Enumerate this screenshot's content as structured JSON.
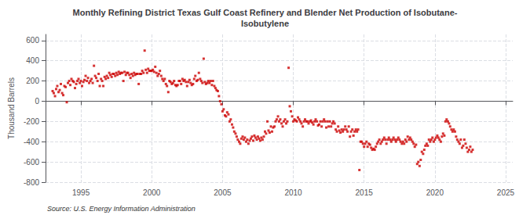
{
  "chart_data": {
    "type": "scatter",
    "title": "Monthly Refining District Texas Gulf Coast Refinery and Blender Net Production of Isobutane-\nIsobutylene",
    "ylabel": "Thousand Barrels",
    "annotations": [
      "Source: U.S. Energy Information Administration"
    ],
    "color": "#cc0000",
    "marker": "square",
    "grid": true,
    "xlim": [
      1992.5,
      2025.5
    ],
    "ylim": [
      -800,
      660
    ],
    "xticks": [
      1995,
      2000,
      2005,
      2010,
      2015,
      2020,
      2025
    ],
    "yticks": [
      -800,
      -600,
      -400,
      -200,
      0,
      200,
      400,
      600
    ],
    "x": [
      1993.0,
      1993.08,
      1993.17,
      1993.25,
      1993.33,
      1993.42,
      1993.5,
      1993.58,
      1993.67,
      1993.75,
      1993.83,
      1993.92,
      1994.0,
      1994.08,
      1994.17,
      1994.25,
      1994.33,
      1994.42,
      1994.5,
      1994.58,
      1994.67,
      1994.75,
      1994.83,
      1994.92,
      1995.0,
      1995.08,
      1995.17,
      1995.25,
      1995.33,
      1995.42,
      1995.5,
      1995.58,
      1995.67,
      1995.75,
      1995.83,
      1995.92,
      1996.0,
      1996.08,
      1996.17,
      1996.25,
      1996.33,
      1996.42,
      1996.5,
      1996.58,
      1996.67,
      1996.75,
      1996.83,
      1996.92,
      1997.0,
      1997.08,
      1997.17,
      1997.25,
      1997.33,
      1997.42,
      1997.5,
      1997.58,
      1997.67,
      1997.75,
      1997.83,
      1997.92,
      1998.0,
      1998.08,
      1998.17,
      1998.25,
      1998.33,
      1998.42,
      1998.5,
      1998.58,
      1998.67,
      1998.75,
      1998.83,
      1998.92,
      1999.0,
      1999.08,
      1999.17,
      1999.25,
      1999.33,
      1999.42,
      1999.5,
      1999.58,
      1999.67,
      1999.75,
      1999.83,
      1999.92,
      2000.0,
      2000.08,
      2000.17,
      2000.25,
      2000.33,
      2000.42,
      2000.5,
      2000.58,
      2000.67,
      2000.75,
      2000.83,
      2000.92,
      2001.0,
      2001.08,
      2001.17,
      2001.25,
      2001.33,
      2001.42,
      2001.5,
      2001.58,
      2001.67,
      2001.75,
      2001.83,
      2001.92,
      2002.0,
      2002.08,
      2002.17,
      2002.25,
      2002.33,
      2002.42,
      2002.5,
      2002.58,
      2002.67,
      2002.75,
      2002.83,
      2002.92,
      2003.0,
      2003.08,
      2003.17,
      2003.25,
      2003.33,
      2003.42,
      2003.5,
      2003.58,
      2003.67,
      2003.75,
      2003.83,
      2003.92,
      2004.0,
      2004.08,
      2004.17,
      2004.25,
      2004.33,
      2004.42,
      2004.5,
      2004.58,
      2004.67,
      2004.75,
      2004.83,
      2004.92,
      2005.0,
      2005.08,
      2005.17,
      2005.25,
      2005.33,
      2005.42,
      2005.5,
      2005.58,
      2005.67,
      2005.75,
      2005.83,
      2005.92,
      2006.0,
      2006.08,
      2006.17,
      2006.25,
      2006.33,
      2006.42,
      2006.5,
      2006.58,
      2006.67,
      2006.75,
      2006.83,
      2006.92,
      2007.0,
      2007.08,
      2007.17,
      2007.25,
      2007.33,
      2007.42,
      2007.5,
      2007.58,
      2007.67,
      2007.75,
      2007.83,
      2007.92,
      2008.0,
      2008.08,
      2008.17,
      2008.25,
      2008.33,
      2008.42,
      2008.5,
      2008.58,
      2008.67,
      2008.75,
      2008.83,
      2008.92,
      2009.0,
      2009.08,
      2009.17,
      2009.25,
      2009.33,
      2009.42,
      2009.5,
      2009.58,
      2009.67,
      2009.75,
      2009.83,
      2009.92,
      2010.0,
      2010.08,
      2010.17,
      2010.25,
      2010.33,
      2010.42,
      2010.5,
      2010.58,
      2010.67,
      2010.75,
      2010.83,
      2010.92,
      2011.0,
      2011.08,
      2011.17,
      2011.25,
      2011.33,
      2011.42,
      2011.5,
      2011.58,
      2011.67,
      2011.75,
      2011.83,
      2011.92,
      2012.0,
      2012.08,
      2012.17,
      2012.25,
      2012.33,
      2012.42,
      2012.5,
      2012.58,
      2012.67,
      2012.75,
      2012.83,
      2012.92,
      2013.0,
      2013.08,
      2013.17,
      2013.25,
      2013.33,
      2013.42,
      2013.5,
      2013.58,
      2013.67,
      2013.75,
      2013.83,
      2013.92,
      2014.0,
      2014.08,
      2014.17,
      2014.25,
      2014.33,
      2014.42,
      2014.5,
      2014.58,
      2014.67,
      2014.75,
      2014.83,
      2014.92,
      2015.0,
      2015.08,
      2015.17,
      2015.25,
      2015.33,
      2015.42,
      2015.5,
      2015.58,
      2015.67,
      2015.75,
      2015.83,
      2015.92,
      2016.0,
      2016.08,
      2016.17,
      2016.25,
      2016.33,
      2016.42,
      2016.5,
      2016.58,
      2016.67,
      2016.75,
      2016.83,
      2016.92,
      2017.0,
      2017.08,
      2017.17,
      2017.25,
      2017.33,
      2017.42,
      2017.5,
      2017.58,
      2017.67,
      2017.75,
      2017.83,
      2017.92,
      2018.0,
      2018.08,
      2018.17,
      2018.25,
      2018.33,
      2018.42,
      2018.5,
      2018.58,
      2018.67,
      2018.75,
      2018.83,
      2018.92,
      2019.0,
      2019.08,
      2019.17,
      2019.25,
      2019.33,
      2019.42,
      2019.5,
      2019.58,
      2019.67,
      2019.75,
      2019.83,
      2019.92,
      2020.0,
      2020.08,
      2020.17,
      2020.25,
      2020.33,
      2020.42,
      2020.5,
      2020.58,
      2020.67,
      2020.75,
      2020.83,
      2020.92,
      2021.0,
      2021.08,
      2021.17,
      2021.25,
      2021.33,
      2021.42,
      2021.5,
      2021.58,
      2021.67,
      2021.75,
      2021.83,
      2021.92,
      2022.0,
      2022.08,
      2022.17,
      2022.25,
      2022.33,
      2022.42,
      2022.5,
      2022.58,
      2022.67
    ],
    "values": [
      100,
      80,
      50,
      120,
      150,
      90,
      110,
      170,
      80,
      60,
      150,
      140,
      -10,
      180,
      200,
      160,
      220,
      200,
      190,
      130,
      170,
      200,
      220,
      180,
      200,
      150,
      190,
      210,
      250,
      200,
      230,
      180,
      200,
      220,
      180,
      350,
      250,
      230,
      200,
      270,
      150,
      220,
      200,
      150,
      240,
      220,
      250,
      230,
      280,
      260,
      240,
      270,
      270,
      250,
      280,
      260,
      290,
      270,
      280,
      280,
      200,
      290,
      260,
      280,
      280,
      260,
      230,
      270,
      250,
      280,
      260,
      270,
      270,
      170,
      270,
      270,
      300,
      280,
      500,
      310,
      280,
      320,
      300,
      300,
      300,
      310,
      290,
      340,
      280,
      250,
      270,
      300,
      250,
      220,
      200,
      220,
      170,
      150,
      90,
      200,
      190,
      170,
      180,
      200,
      160,
      150,
      160,
      200,
      200,
      170,
      220,
      200,
      210,
      190,
      150,
      190,
      210,
      180,
      160,
      170,
      220,
      250,
      200,
      210,
      280,
      220,
      200,
      180,
      420,
      190,
      170,
      180,
      200,
      180,
      200,
      160,
      200,
      150,
      130,
      110,
      100,
      50,
      0,
      -30,
      -100,
      -80,
      -140,
      -150,
      -110,
      -130,
      -200,
      -180,
      -230,
      -260,
      -300,
      -320,
      -350,
      -380,
      -400,
      -420,
      -370,
      -350,
      -380,
      -360,
      -400,
      -380,
      -420,
      -390,
      -370,
      -350,
      -390,
      -340,
      -360,
      -380,
      -350,
      -370,
      -390,
      -360,
      -380,
      -350,
      -300,
      -320,
      -200,
      -290,
      -310,
      -250,
      -300,
      -260,
      -250,
      -200,
      -180,
      -150,
      -200,
      -180,
      -220,
      -250,
      -200,
      -180,
      -220,
      -200,
      330,
      -50,
      -100,
      -150,
      -200,
      -180,
      -190,
      -200,
      -160,
      -180,
      -200,
      -220,
      -250,
      -200,
      -180,
      -200,
      -200,
      -220,
      -200,
      -190,
      -210,
      -230,
      -200,
      -180,
      -200,
      -240,
      -230,
      -200,
      -250,
      -200,
      -180,
      -200,
      -260,
      -200,
      -250,
      -200,
      -250,
      -220,
      -200,
      -220,
      -280,
      -300,
      -250,
      -290,
      -310,
      -280,
      -300,
      -280,
      -250,
      -280,
      -300,
      -250,
      -350,
      -300,
      -280,
      -340,
      -300,
      -280,
      -300,
      -280,
      -680,
      -400,
      -400,
      -420,
      -450,
      -420,
      -400,
      -450,
      -420,
      -430,
      -460,
      -480,
      -470,
      -480,
      -450,
      -420,
      -400,
      -380,
      -420,
      -400,
      -380,
      -360,
      -380,
      -420,
      -380,
      -360,
      -380,
      -400,
      -380,
      -360,
      -380,
      -400,
      -380,
      -360,
      -380,
      -400,
      -420,
      -400,
      -420,
      -380,
      -400,
      -350,
      -380,
      -360,
      -380,
      -400,
      -420,
      -450,
      -430,
      -620,
      -600,
      -640,
      -580,
      -500,
      -520,
      -480,
      -440,
      -420,
      -440,
      -380,
      -400,
      -380,
      -360,
      -400,
      -380,
      -360,
      -340,
      -360,
      -380,
      -400,
      -350,
      -320,
      -340,
      -200,
      -180,
      -200,
      -220,
      -250,
      -280,
      -300,
      -280,
      -300,
      -350,
      -380,
      -400,
      -420,
      -380,
      -460,
      -440,
      -380,
      -420,
      -460,
      -500,
      -480,
      -450,
      -500,
      -480
    ]
  }
}
